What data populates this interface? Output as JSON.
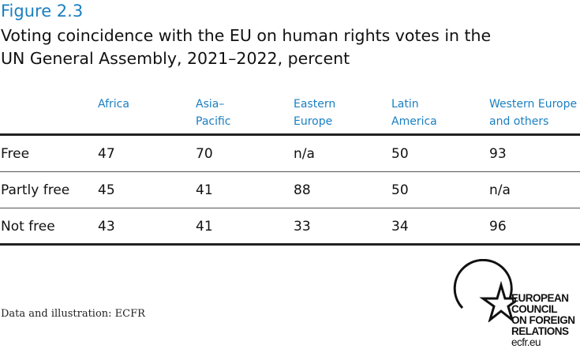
{
  "figure_label": "Figure 2.3",
  "title_lines": [
    "Voting coincidence with the EU on human rights votes in the",
    "UN General Assembly, 2021–2022, percent"
  ],
  "chart_data": {
    "type": "table",
    "columns": [
      [
        "Africa",
        ""
      ],
      [
        "Asia–",
        "Pacific"
      ],
      [
        "Eastern",
        "Europe"
      ],
      [
        "Latin",
        "America"
      ],
      [
        "Western Europe",
        "and others"
      ]
    ],
    "rows": [
      {
        "label": "Free",
        "values": [
          "47",
          "70",
          "n/a",
          "50",
          "93"
        ]
      },
      {
        "label": "Partly free",
        "values": [
          "45",
          "41",
          "88",
          "50",
          "n/a"
        ]
      },
      {
        "label": "Not free",
        "values": [
          "43",
          "41",
          "33",
          "34",
          "96"
        ]
      }
    ],
    "header_color": "#1a7fc1"
  },
  "note": "Data and illustration: ECFR",
  "logo": {
    "lines": [
      "EUROPEAN",
      "COUNCIL",
      "ON FOREIGN",
      "RELATIONS"
    ],
    "url_text": "ecfr.eu"
  }
}
